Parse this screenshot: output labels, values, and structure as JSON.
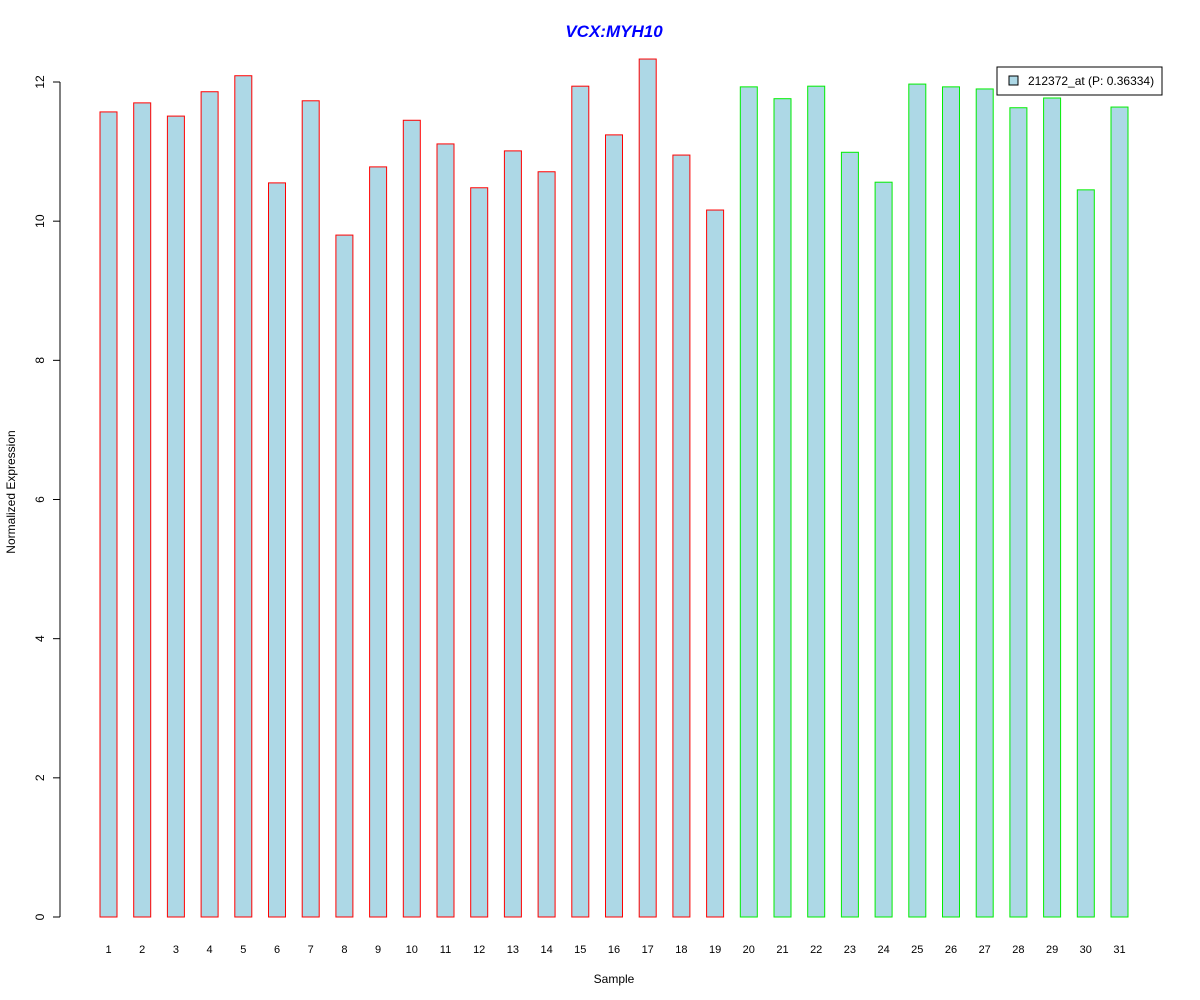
{
  "chart_data": {
    "type": "bar",
    "title": "VCX:MYH10",
    "xlabel": "Sample",
    "ylabel": "Normalized Expression",
    "ylim": [
      0,
      12
    ],
    "yticks": [
      0,
      2,
      4,
      6,
      8,
      10,
      12
    ],
    "categories": [
      "1",
      "2",
      "3",
      "4",
      "5",
      "6",
      "7",
      "8",
      "9",
      "10",
      "11",
      "12",
      "13",
      "14",
      "15",
      "16",
      "17",
      "18",
      "19",
      "20",
      "21",
      "22",
      "23",
      "24",
      "25",
      "26",
      "27",
      "28",
      "29",
      "30",
      "31"
    ],
    "values": [
      11.57,
      11.7,
      11.51,
      11.86,
      12.09,
      10.55,
      11.73,
      9.8,
      10.78,
      11.45,
      11.11,
      10.48,
      11.01,
      10.71,
      11.94,
      11.24,
      12.33,
      10.95,
      10.16,
      11.93,
      11.76,
      11.94,
      10.99,
      10.56,
      11.97,
      11.93,
      11.9,
      11.63,
      11.77,
      10.45,
      11.64
    ],
    "groups": [
      "red",
      "red",
      "red",
      "red",
      "red",
      "red",
      "red",
      "red",
      "red",
      "red",
      "red",
      "red",
      "red",
      "red",
      "red",
      "red",
      "red",
      "red",
      "red",
      "green",
      "green",
      "green",
      "green",
      "green",
      "green",
      "green",
      "green",
      "green",
      "green",
      "green",
      "green"
    ],
    "group_colors": {
      "red": "#ff0000",
      "green": "#00ee00"
    },
    "fill_color": "#add8e6",
    "title_color": "#0000ff",
    "legend": {
      "label": "212372_at (P: 0.36334)",
      "placement": "top-right"
    }
  }
}
